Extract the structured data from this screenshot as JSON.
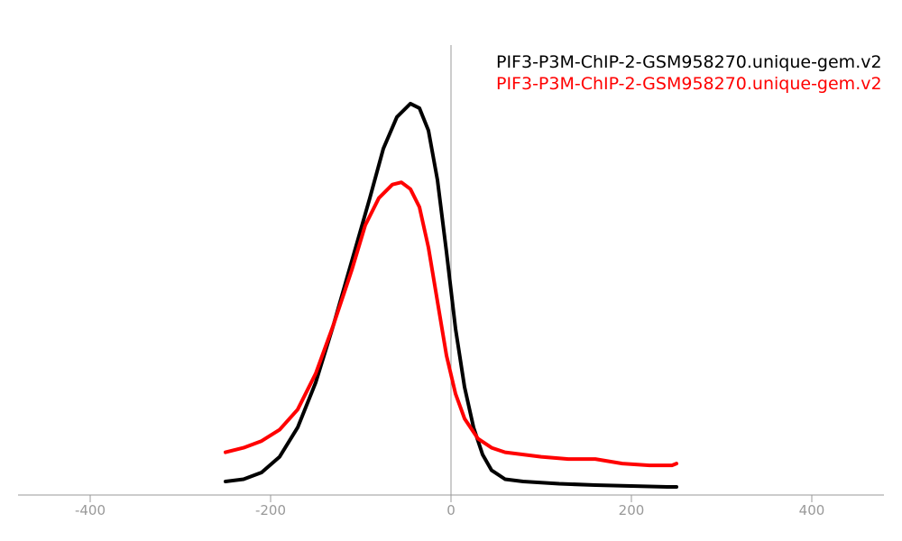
{
  "chart_data": {
    "type": "line",
    "title": "",
    "xlabel": "",
    "ylabel": "",
    "xlim": [
      -480,
      480
    ],
    "ylim": [
      0,
      1
    ],
    "grid": false,
    "legend_placement": "top-right",
    "x_ticks": [
      {
        "value": -400,
        "label": "-400"
      },
      {
        "value": -200,
        "label": "-200"
      },
      {
        "value": 0,
        "label": "0"
      },
      {
        "value": 200,
        "label": "200"
      },
      {
        "value": 400,
        "label": "400"
      }
    ],
    "series": [
      {
        "name": "PIF3-P3M-ChIP-2-GSM958270.unique-gem.v2",
        "color": "#000000",
        "points": [
          [
            -250,
            0.03
          ],
          [
            -230,
            0.035
          ],
          [
            -210,
            0.05
          ],
          [
            -190,
            0.085
          ],
          [
            -170,
            0.15
          ],
          [
            -150,
            0.25
          ],
          [
            -130,
            0.38
          ],
          [
            -110,
            0.52
          ],
          [
            -90,
            0.66
          ],
          [
            -75,
            0.77
          ],
          [
            -60,
            0.84
          ],
          [
            -45,
            0.87
          ],
          [
            -35,
            0.86
          ],
          [
            -25,
            0.81
          ],
          [
            -15,
            0.7
          ],
          [
            -5,
            0.54
          ],
          [
            5,
            0.37
          ],
          [
            15,
            0.24
          ],
          [
            25,
            0.15
          ],
          [
            35,
            0.09
          ],
          [
            45,
            0.055
          ],
          [
            60,
            0.035
          ],
          [
            80,
            0.03
          ],
          [
            120,
            0.025
          ],
          [
            160,
            0.022
          ],
          [
            200,
            0.02
          ],
          [
            240,
            0.018
          ],
          [
            250,
            0.018
          ]
        ]
      },
      {
        "name": "PIF3-P3M-ChIP-2-GSM958270.unique-gem.v2",
        "color": "#ff0000",
        "points": [
          [
            -250,
            0.095
          ],
          [
            -230,
            0.105
          ],
          [
            -210,
            0.12
          ],
          [
            -190,
            0.145
          ],
          [
            -170,
            0.19
          ],
          [
            -150,
            0.27
          ],
          [
            -130,
            0.38
          ],
          [
            -110,
            0.5
          ],
          [
            -95,
            0.6
          ],
          [
            -80,
            0.66
          ],
          [
            -65,
            0.69
          ],
          [
            -55,
            0.695
          ],
          [
            -45,
            0.68
          ],
          [
            -35,
            0.64
          ],
          [
            -25,
            0.55
          ],
          [
            -15,
            0.43
          ],
          [
            -5,
            0.31
          ],
          [
            5,
            0.225
          ],
          [
            15,
            0.17
          ],
          [
            30,
            0.125
          ],
          [
            45,
            0.105
          ],
          [
            60,
            0.095
          ],
          [
            80,
            0.09
          ],
          [
            100,
            0.085
          ],
          [
            130,
            0.08
          ],
          [
            160,
            0.08
          ],
          [
            190,
            0.07
          ],
          [
            220,
            0.066
          ],
          [
            245,
            0.066
          ],
          [
            250,
            0.07
          ]
        ]
      }
    ]
  }
}
